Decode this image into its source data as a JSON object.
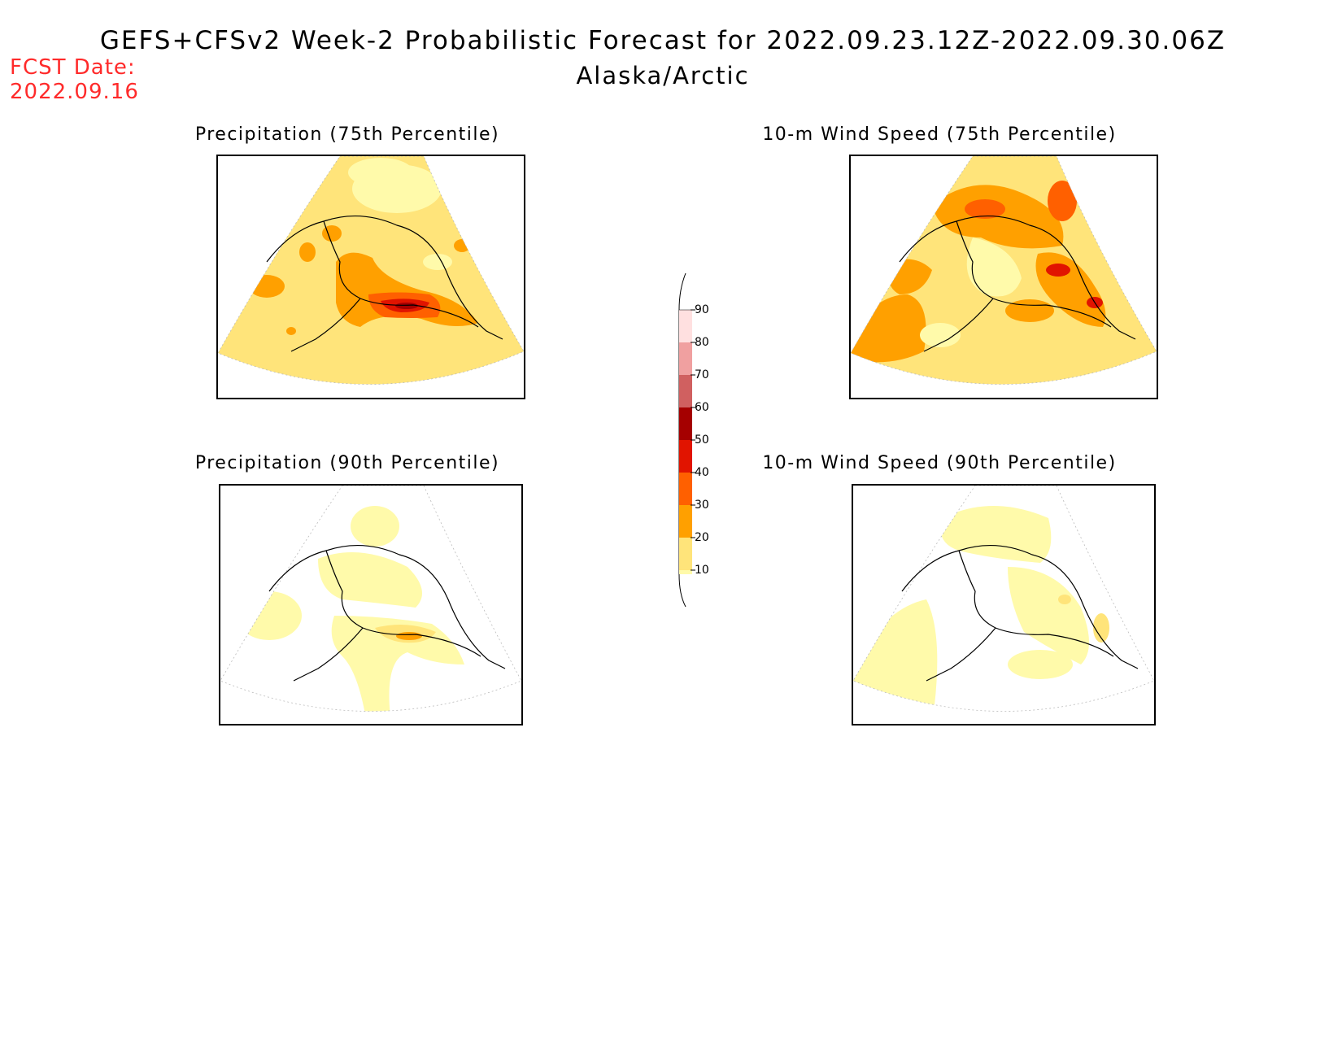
{
  "title": "GEFS+CFSv2 Week-2 Probabilistic Forecast for 2022.09.23.12Z-2022.09.30.06Z",
  "subtitle": "Alaska/Arctic",
  "forecast_date": {
    "label": "FCST Date:",
    "value": "2022.09.16"
  },
  "panels": [
    {
      "id": "precip75",
      "title": "Precipitation (75th Percentile)"
    },
    {
      "id": "wind75",
      "title": "10-m Wind Speed (75th Percentile)"
    },
    {
      "id": "precip90",
      "title": "Precipitation (90th Percentile)"
    },
    {
      "id": "wind90",
      "title": "10-m Wind Speed (90th Percentile)"
    }
  ],
  "colorbar": {
    "labels": [
      "90",
      "80",
      "70",
      "60",
      "50",
      "40",
      "30",
      "20",
      "10"
    ],
    "colors": {
      "c10": "#fffaaa",
      "c20": "#ffe47a",
      "c30": "#ffa000",
      "c40": "#ff6000",
      "c50": "#e11400",
      "c60": "#a50000",
      "c70": "#d06060",
      "c80": "#f0a0a0",
      "c90": "#ffe0e0"
    }
  }
}
